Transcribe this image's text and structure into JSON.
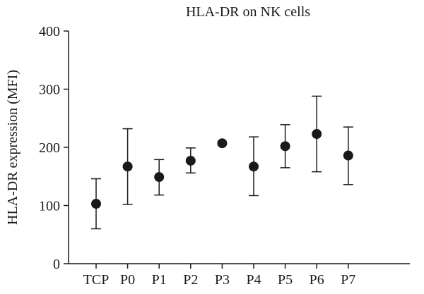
{
  "chart_data": {
    "type": "scatter",
    "title": "HLA-DR on NK cells",
    "xlabel": "",
    "ylabel": "HLA-DR expression (MFI)",
    "ylim": [
      0,
      400
    ],
    "yticks": [
      0,
      100,
      200,
      300,
      400
    ],
    "grid": false,
    "categories": [
      "TCP",
      "P0",
      "P1",
      "P2",
      "P3",
      "P4",
      "P5",
      "P6",
      "P7"
    ],
    "series": [
      {
        "values": [
          103,
          167,
          149,
          177,
          207,
          167,
          202,
          223,
          186
        ],
        "error_low": [
          60,
          102,
          118,
          156,
          207,
          117,
          165,
          158,
          136
        ],
        "error_high": [
          146,
          232,
          179,
          199,
          207,
          218,
          239,
          288,
          235
        ]
      }
    ]
  }
}
